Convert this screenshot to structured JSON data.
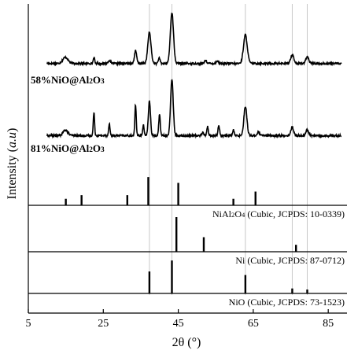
{
  "chart_data": {
    "type": "line",
    "xlabel": "2θ (°)",
    "ylabel": "Intensity (a.u)",
    "ylabel_parts": [
      "Intensity (",
      "a.u",
      ")"
    ],
    "xlim": [
      5,
      90
    ],
    "xticks": [
      5,
      25,
      45,
      65,
      85
    ],
    "xtick_labels": [
      "5",
      "25",
      "45",
      "65",
      "85"
    ],
    "guide_lines_x": [
      37.3,
      43.3,
      62.9,
      75.4,
      79.4
    ],
    "series": [
      {
        "name": "58%NiO@Al2O3",
        "label_parts": [
          [
            "58%NiO@Al",
            false
          ],
          [
            "2",
            true
          ],
          [
            "O",
            false
          ],
          [
            "3",
            true
          ]
        ],
        "baseline": 0.05,
        "noise_amplitude": 0.035,
        "peaks": [
          {
            "x": 14.9,
            "h": 0.12,
            "w": 0.7
          },
          {
            "x": 22.5,
            "h": 0.12,
            "w": 0.18
          },
          {
            "x": 26.6,
            "h": 0.06,
            "w": 0.3
          },
          {
            "x": 33.6,
            "h": 0.24,
            "w": 0.3
          },
          {
            "x": 37.3,
            "h": 0.6,
            "w": 0.42
          },
          {
            "x": 39.9,
            "h": 0.1,
            "w": 0.25
          },
          {
            "x": 43.3,
            "h": 0.98,
            "w": 0.42
          },
          {
            "x": 52.3,
            "h": 0.06,
            "w": 0.3
          },
          {
            "x": 55.4,
            "h": 0.05,
            "w": 0.3
          },
          {
            "x": 62.9,
            "h": 0.55,
            "w": 0.5
          },
          {
            "x": 75.4,
            "h": 0.17,
            "w": 0.42
          },
          {
            "x": 79.4,
            "h": 0.12,
            "w": 0.42
          }
        ]
      },
      {
        "name": "81%NiO@Al2O3",
        "label_parts": [
          [
            "81%NiO@Al",
            false
          ],
          [
            "2",
            true
          ],
          [
            "O",
            false
          ],
          [
            "3",
            true
          ]
        ],
        "baseline": 0.05,
        "noise_amplitude": 0.035,
        "peaks": [
          {
            "x": 14.9,
            "h": 0.1,
            "w": 0.6
          },
          {
            "x": 22.5,
            "h": 0.4,
            "w": 0.18
          },
          {
            "x": 26.6,
            "h": 0.22,
            "w": 0.18
          },
          {
            "x": 33.6,
            "h": 0.55,
            "w": 0.18
          },
          {
            "x": 35.7,
            "h": 0.2,
            "w": 0.18
          },
          {
            "x": 37.3,
            "h": 0.62,
            "w": 0.28
          },
          {
            "x": 40.0,
            "h": 0.38,
            "w": 0.2
          },
          {
            "x": 43.3,
            "h": 1.0,
            "w": 0.35
          },
          {
            "x": 51.5,
            "h": 0.05,
            "w": 0.3
          },
          {
            "x": 52.8,
            "h": 0.16,
            "w": 0.2
          },
          {
            "x": 55.8,
            "h": 0.19,
            "w": 0.2
          },
          {
            "x": 59.7,
            "h": 0.1,
            "w": 0.2
          },
          {
            "x": 62.9,
            "h": 0.52,
            "w": 0.4
          },
          {
            "x": 66.4,
            "h": 0.06,
            "w": 0.3
          },
          {
            "x": 75.4,
            "h": 0.15,
            "w": 0.35
          },
          {
            "x": 79.4,
            "h": 0.1,
            "w": 0.35
          }
        ]
      }
    ],
    "references": [
      {
        "name": "NiAl2O4 (Cubic, JCPDS: 10-0339)",
        "label_parts": [
          [
            "NiAl",
            false
          ],
          [
            "2",
            true
          ],
          [
            "O",
            false
          ],
          [
            "4",
            true
          ],
          [
            " (Cubic, JCPDS: 10-0339)",
            false
          ]
        ],
        "ylim": [
          0,
          1
        ],
        "sticks": [
          {
            "x": 15.0,
            "h": 0.18
          },
          {
            "x": 19.2,
            "h": 0.28
          },
          {
            "x": 31.4,
            "h": 0.28
          },
          {
            "x": 37.0,
            "h": 0.78
          },
          {
            "x": 45.0,
            "h": 0.62
          },
          {
            "x": 59.7,
            "h": 0.18
          },
          {
            "x": 65.6,
            "h": 0.38
          }
        ]
      },
      {
        "name": "Ni (Cubic, JCPDS: 87-0712)",
        "label_parts": [
          [
            "Ni (Cubic, JCPDS: 87-0712)",
            false
          ]
        ],
        "ylim": [
          0,
          1
        ],
        "sticks": [
          {
            "x": 44.5,
            "h": 1.0
          },
          {
            "x": 51.8,
            "h": 0.42
          },
          {
            "x": 76.4,
            "h": 0.2
          }
        ]
      },
      {
        "name": "NiO (Cubic, JCPDS: 73-1523)",
        "label_parts": [
          [
            "NiO (Cubic, JCPDS: 73-1523)",
            false
          ]
        ],
        "ylim": [
          0,
          1
        ],
        "sticks": [
          {
            "x": 37.3,
            "h": 0.62
          },
          {
            "x": 43.3,
            "h": 0.93
          },
          {
            "x": 62.9,
            "h": 0.52
          },
          {
            "x": 75.4,
            "h": 0.14
          },
          {
            "x": 79.4,
            "h": 0.11
          }
        ]
      }
    ],
    "line_color": "#000000",
    "guide_color": "#c8c8c8"
  }
}
